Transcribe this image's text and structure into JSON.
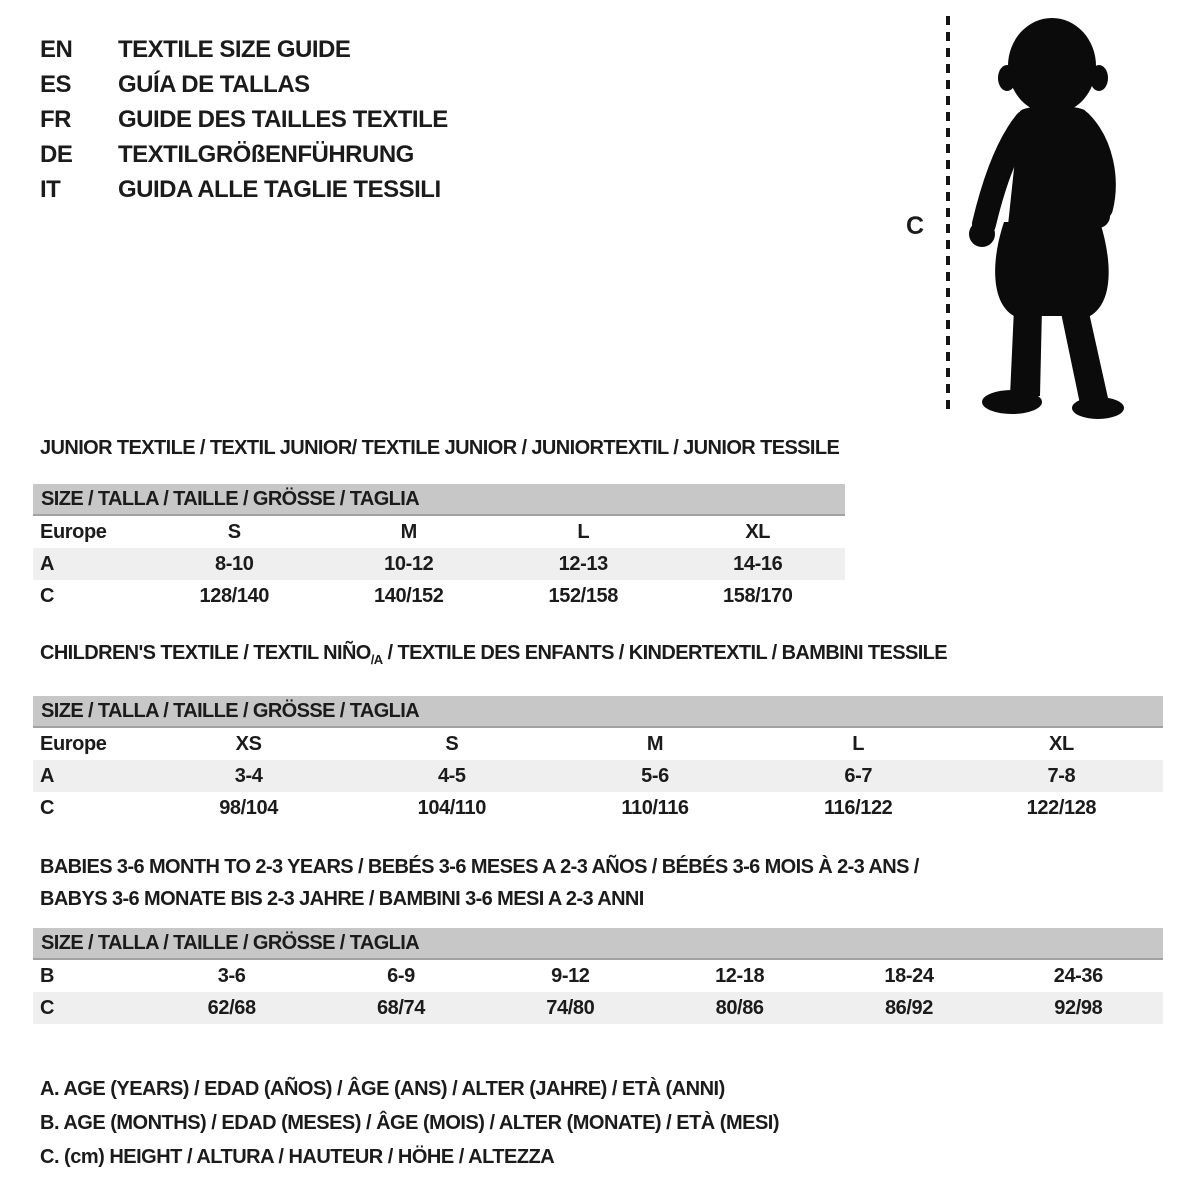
{
  "colors": {
    "background": "#ffffff",
    "text": "#1b1b1b",
    "size_bar": "#c7c7c7",
    "size_bar_edge": "#a2a2a2",
    "alt_row": "#efefef",
    "silhouette": "#0b0b0b"
  },
  "header": {
    "entries": [
      {
        "code": "EN",
        "title": "TEXTILE SIZE GUIDE"
      },
      {
        "code": "ES",
        "title": "GUÍA DE TALLAS"
      },
      {
        "code": "FR",
        "title": "GUIDE DES TAILLES TEXTILE"
      },
      {
        "code": "DE",
        "title": "TEXTILGRÖßENFÜHRUNG"
      },
      {
        "code": "IT",
        "title": "GUIDA ALLE TAGLIE TESSILI"
      }
    ]
  },
  "figure": {
    "height_marker_label": "C"
  },
  "sections": {
    "junior": {
      "title": "JUNIOR TEXTILE / TEXTIL JUNIOR/ TEXTILE JUNIOR / JUNIORTEXTIL / JUNIOR TESSILE",
      "table": {
        "size_header": "SIZE / TALLA / TAILLE / GRÖSSE / TAGLIA",
        "rows": [
          {
            "label": "Europe",
            "cells": [
              "S",
              "M",
              "L",
              "XL"
            ],
            "shaded": false
          },
          {
            "label": "A",
            "cells": [
              "8-10",
              "10-12",
              "12-13",
              "14-16"
            ],
            "shaded": true
          },
          {
            "label": "C",
            "cells": [
              "128/140",
              "140/152",
              "152/158",
              "158/170"
            ],
            "shaded": false
          }
        ]
      }
    },
    "children": {
      "title_prefix": "CHILDREN'S TEXTILE / TEXTIL NIÑO",
      "title_sub": "/A",
      "title_suffix": " / TEXTILE DES ENFANTS / KINDERTEXTIL / BAMBINI TESSILE",
      "table": {
        "size_header": "SIZE / TALLA / TAILLE / GRÖSSE / TAGLIA",
        "rows": [
          {
            "label": "Europe",
            "cells": [
              "XS",
              "S",
              "M",
              "L",
              "XL"
            ],
            "shaded": false
          },
          {
            "label": "A",
            "cells": [
              "3-4",
              "4-5",
              "5-6",
              "6-7",
              "7-8"
            ],
            "shaded": true
          },
          {
            "label": "C",
            "cells": [
              "98/104",
              "104/110",
              "110/116",
              "116/122",
              "122/128"
            ],
            "shaded": false
          }
        ]
      }
    },
    "babies": {
      "title_line1": "BABIES 3-6 MONTH TO 2-3 YEARS / BEBÉS 3-6 MESES A 2-3 AÑOS / BÉBÉS 3-6 MOIS À 2-3 ANS /",
      "title_line2": "BABYS 3-6 MONATE BIS 2-3 JAHRE / BAMBINI 3-6 MESI A 2-3 ANNI",
      "table": {
        "size_header": "SIZE / TALLA / TAILLE / GRÖSSE / TAGLIA",
        "rows": [
          {
            "label": "B",
            "cells": [
              "3-6",
              "6-9",
              "9-12",
              "12-18",
              "18-24",
              "24-36"
            ],
            "shaded": false
          },
          {
            "label": "C",
            "cells": [
              "62/68",
              "68/74",
              "74/80",
              "80/86",
              "86/92",
              "92/98"
            ],
            "shaded": true
          }
        ]
      }
    }
  },
  "legend": {
    "lines": [
      "A. AGE (YEARS) / EDAD (AÑOS) / ÂGE (ANS) / ALTER (JAHRE) / ETÀ (ANNI)",
      "B. AGE (MONTHS) / EDAD (MESES) / ÂGE (MOIS) / ALTER (MONATE) / ETÀ (MESI)",
      "C. (cm) HEIGHT / ALTURA / HAUTEUR / HÖHE / ALTEZZA"
    ]
  }
}
